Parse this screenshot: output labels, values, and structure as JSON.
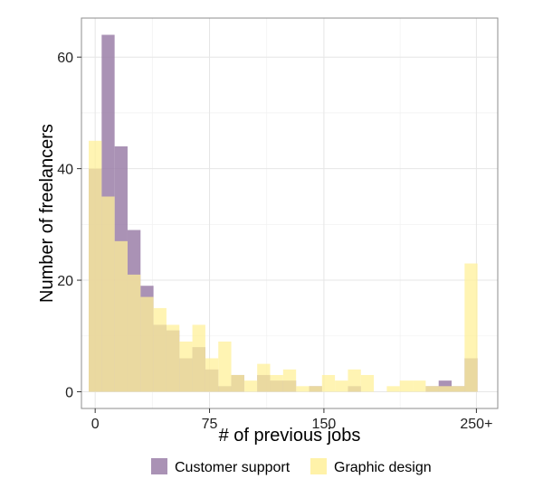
{
  "chart_data": {
    "type": "histogram",
    "xlabel": "# of previous jobs",
    "ylabel": "Number of freelancers",
    "x_ticks": [
      {
        "value": 0,
        "label": "0"
      },
      {
        "value": 75,
        "label": "75"
      },
      {
        "value": 150,
        "label": "150"
      },
      {
        "value": 250,
        "label": "250+"
      }
    ],
    "y_ticks": [
      0,
      20,
      40,
      60
    ],
    "xlim": [
      -9,
      264
    ],
    "ylim": [
      -3,
      67
    ],
    "bin_width": 8.5,
    "bin_starts": [
      -4.25,
      4.25,
      12.75,
      21.25,
      29.75,
      38.25,
      46.75,
      55.25,
      63.75,
      72.25,
      80.75,
      89.25,
      97.75,
      106.25,
      114.75,
      123.25,
      131.75,
      140.25,
      148.75,
      157.25,
      165.75,
      174.25,
      182.75,
      191.25,
      199.75,
      208.25,
      216.75,
      225.25,
      233.75,
      242.25
    ],
    "grid": true,
    "legend_position": "bottom",
    "series": [
      {
        "name": "Customer support",
        "color": "#9b7fa8",
        "values": [
          40,
          64,
          44,
          29,
          19,
          12,
          11,
          6,
          8,
          4,
          1,
          3,
          0,
          3,
          2,
          2,
          0,
          1,
          0,
          0,
          1,
          0,
          0,
          0,
          0,
          0,
          1,
          2,
          1,
          6
        ]
      },
      {
        "name": "Graphic design",
        "color": "#fff09a",
        "values": [
          45,
          35,
          27,
          21,
          17,
          15,
          12,
          9,
          12,
          6,
          9,
          3,
          2,
          5,
          3,
          4,
          1,
          1,
          3,
          2,
          4,
          3,
          0,
          1,
          2,
          2,
          1,
          1,
          1,
          23
        ]
      }
    ]
  }
}
